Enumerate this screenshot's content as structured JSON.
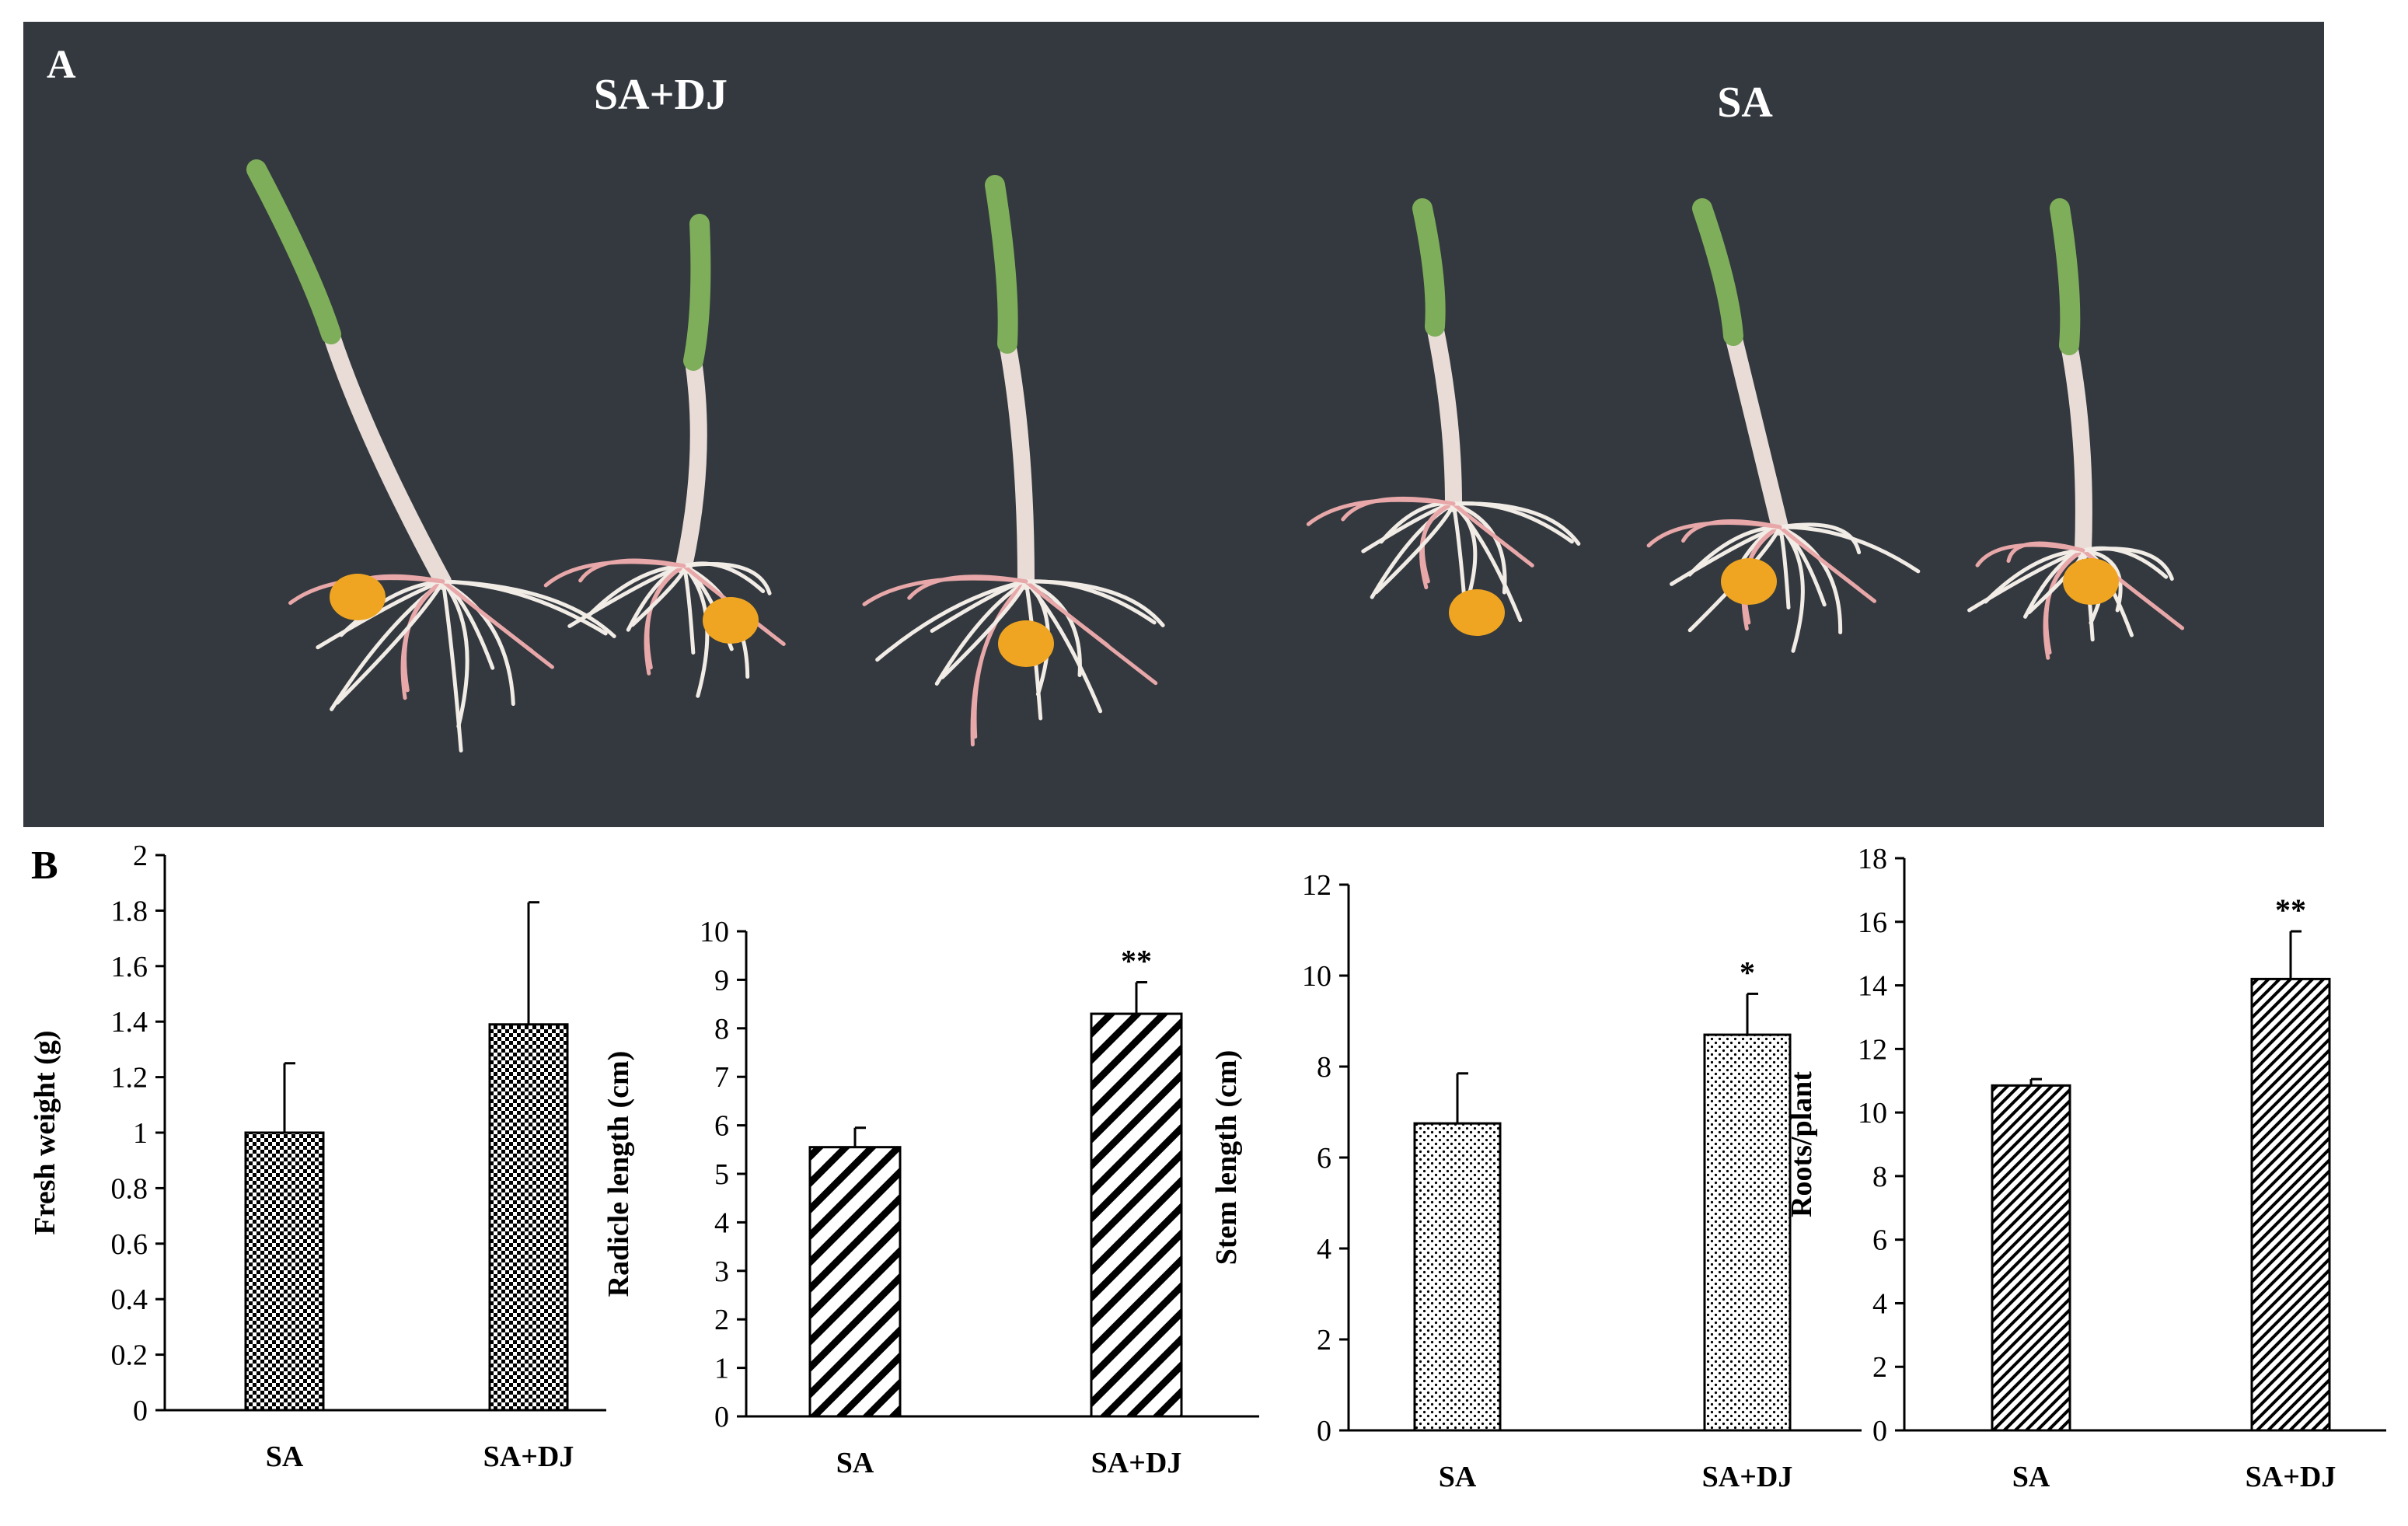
{
  "panel_a": {
    "label": "A",
    "group_left_label": "SA+DJ",
    "group_right_label": "SA"
  },
  "panel_b": {
    "label": "B"
  },
  "colors": {
    "photo_background": "#33393f",
    "seedling_green": "#7eae5a",
    "root_pink": "#e8a7a8",
    "seed_yellow": "#f0a522",
    "bar_fill": "#ffffff",
    "bar_pattern": "#000000"
  },
  "chart_data": [
    {
      "type": "bar",
      "categories": [
        "SA",
        "SA+DJ"
      ],
      "values": [
        1.0,
        1.39
      ],
      "errors": [
        0.25,
        0.44
      ],
      "significance": [
        "",
        ""
      ],
      "ylabel": "Fresh weight (g)",
      "xlabel": "",
      "ylim": [
        0,
        2
      ],
      "yticks": [
        "0",
        "0.2",
        "0.4",
        "0.6",
        "0.8",
        "1",
        "1.2",
        "1.4",
        "1.6",
        "1.8",
        "2"
      ],
      "pattern": "checker",
      "grid": false
    },
    {
      "type": "bar",
      "categories": [
        "SA",
        "SA+DJ"
      ],
      "values": [
        5.55,
        8.3
      ],
      "errors": [
        0.4,
        0.65
      ],
      "significance": [
        "",
        "**"
      ],
      "ylabel": "Radicle length (cm)",
      "xlabel": "",
      "ylim": [
        0,
        10
      ],
      "yticks": [
        "0",
        "1",
        "2",
        "3",
        "4",
        "5",
        "6",
        "7",
        "8",
        "9",
        "10"
      ],
      "pattern": "diagonal-wide",
      "grid": false
    },
    {
      "type": "bar",
      "categories": [
        "SA",
        "SA+DJ"
      ],
      "values": [
        6.75,
        8.7
      ],
      "errors": [
        1.1,
        0.9
      ],
      "significance": [
        "",
        "*"
      ],
      "ylabel": "Stem length (cm)",
      "xlabel": "",
      "ylim": [
        0,
        12
      ],
      "yticks": [
        "0",
        "2",
        "4",
        "6",
        "8",
        "10",
        "12"
      ],
      "pattern": "dots",
      "grid": false
    },
    {
      "type": "bar",
      "categories": [
        "SA",
        "SA+DJ"
      ],
      "values": [
        10.85,
        14.2
      ],
      "errors": [
        0.2,
        1.5
      ],
      "significance": [
        "",
        "**"
      ],
      "ylabel": "Roots/plant",
      "xlabel": "",
      "ylim": [
        0,
        18
      ],
      "yticks": [
        "0",
        "2",
        "4",
        "6",
        "8",
        "10",
        "12",
        "14",
        "16",
        "18"
      ],
      "pattern": "diagonal-fine",
      "grid": false
    }
  ]
}
